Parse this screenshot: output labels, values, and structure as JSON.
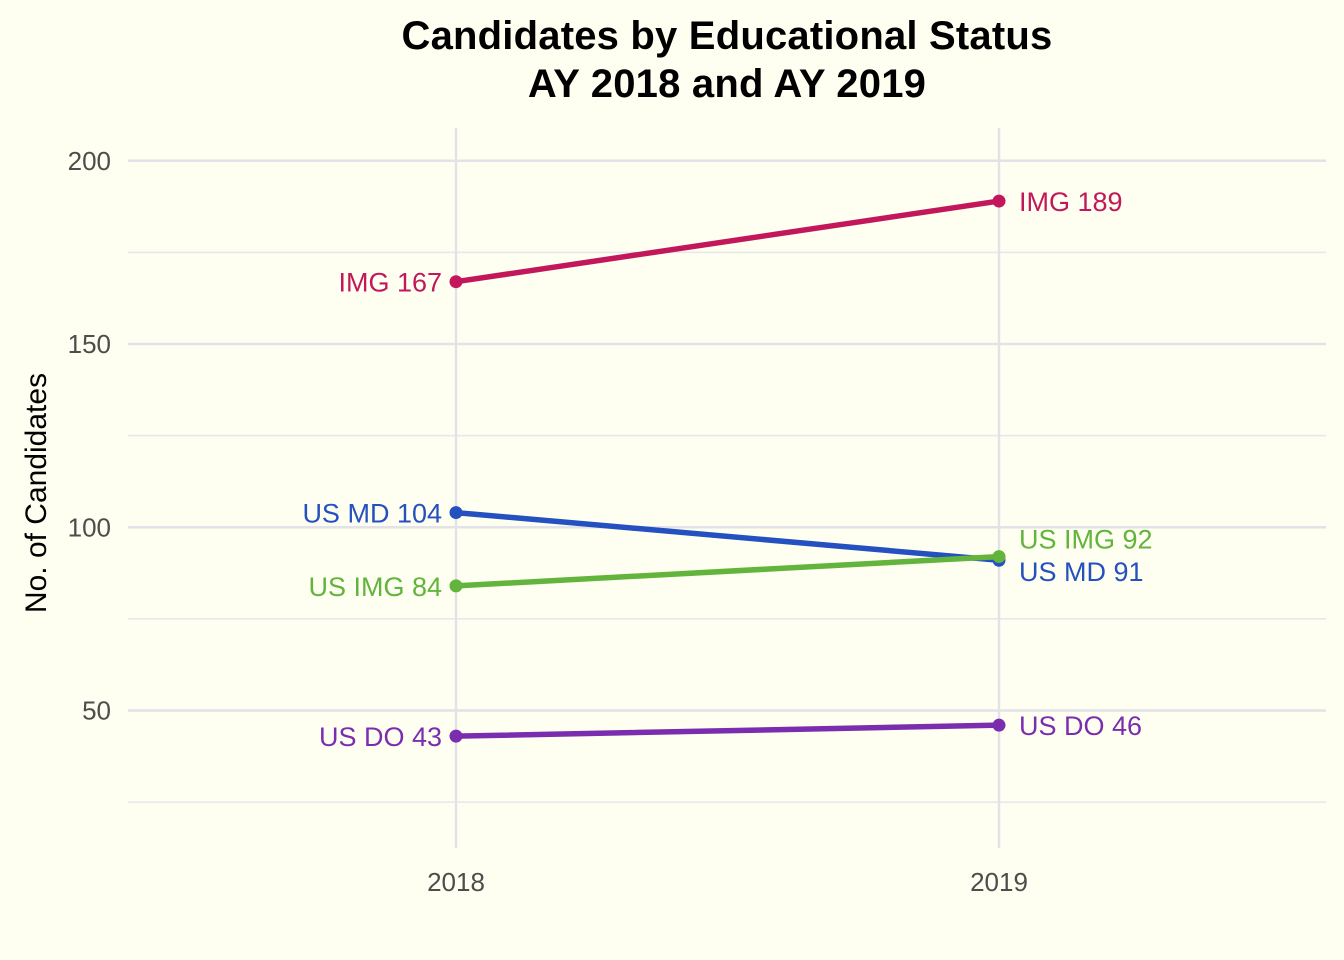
{
  "chart_data": {
    "type": "line",
    "title_line1": "Candidates by Educational Status",
    "title_line2": "AY 2018 and AY 2019",
    "xlabel": "",
    "ylabel": "No. of Candidates",
    "categories": [
      "2018",
      "2019"
    ],
    "ylim": [
      16,
      208
    ],
    "yticks": [
      50,
      100,
      150,
      200
    ],
    "ytick_labels": [
      "50",
      "100",
      "150",
      "200"
    ],
    "grid": true,
    "legend": "none",
    "series": [
      {
        "name": "IMG",
        "values": [
          167,
          189
        ],
        "color": "#c2185b",
        "labels": [
          "IMG 167",
          "IMG 189"
        ]
      },
      {
        "name": "US MD",
        "values": [
          104,
          91
        ],
        "color": "#2450c0",
        "labels": [
          "US MD 104",
          "US MD 91"
        ]
      },
      {
        "name": "US IMG",
        "values": [
          84,
          92
        ],
        "color": "#62b43c",
        "labels": [
          "US IMG 84",
          "US IMG 92"
        ]
      },
      {
        "name": "US DO",
        "values": [
          43,
          46
        ],
        "color": "#7b2db0",
        "labels": [
          "US DO 43",
          "US DO 46"
        ]
      }
    ]
  }
}
